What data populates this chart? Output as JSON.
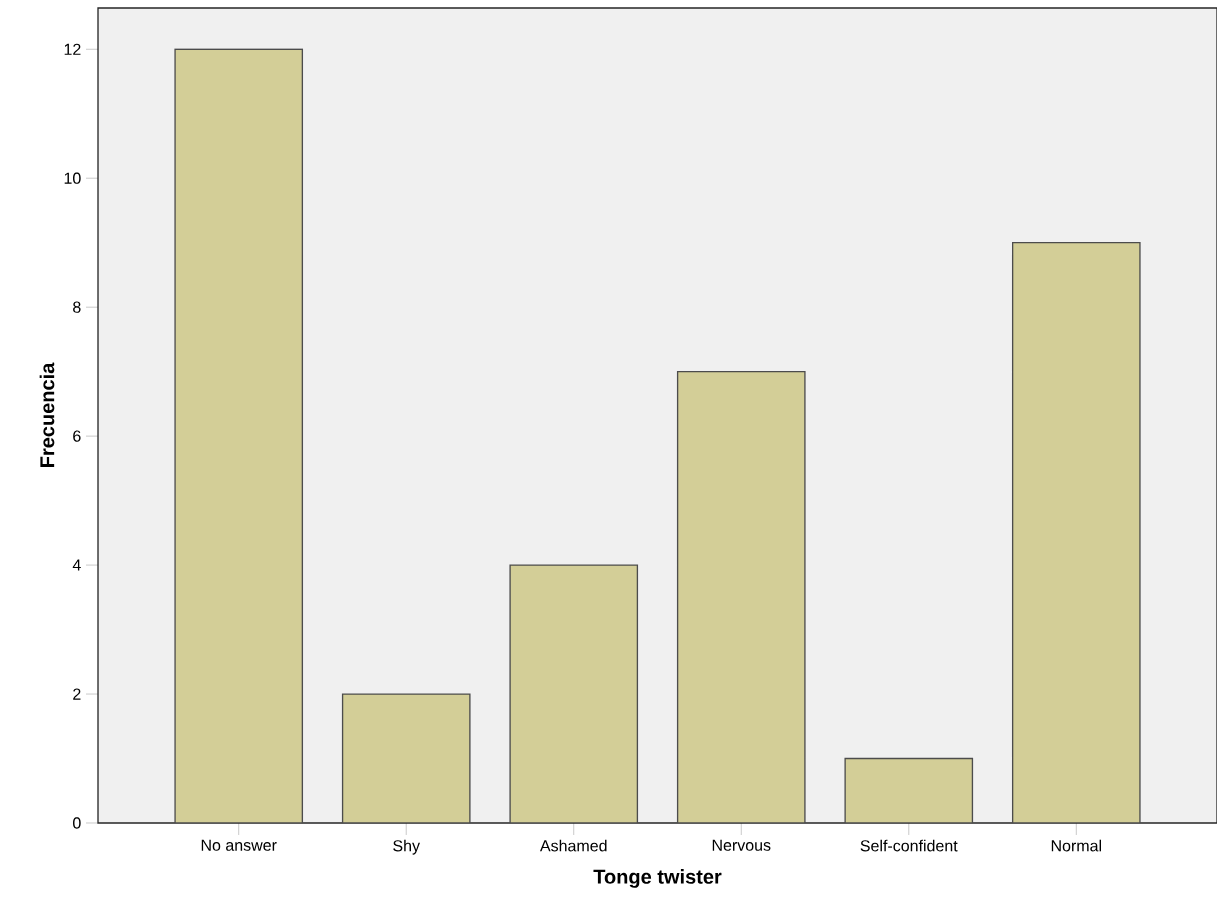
{
  "chart_data": {
    "type": "bar",
    "xlabel": "Tonge twister",
    "ylabel": "Frecuencia",
    "categories": [
      "No answer",
      "Shy",
      "Ashamed",
      "Nervous",
      "Self-confident",
      "Normal"
    ],
    "values": [
      12,
      2,
      4,
      7,
      1,
      9
    ],
    "color": "#d3ce97",
    "ylim": [
      0,
      12.64
    ],
    "yticks": [
      0,
      2,
      4,
      6,
      8,
      10,
      12
    ],
    "grid": false
  }
}
